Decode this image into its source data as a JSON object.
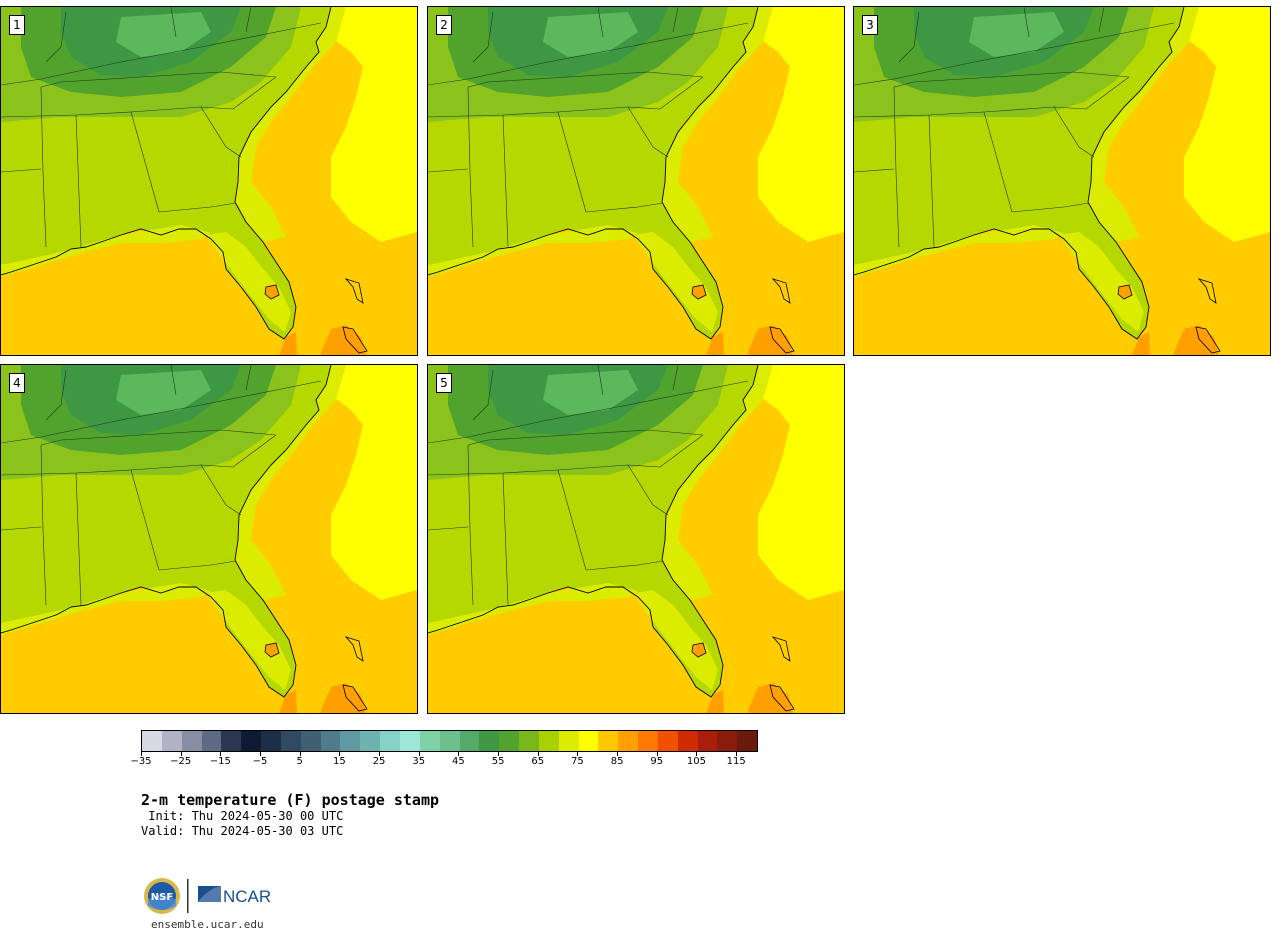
{
  "figure": {
    "title": "2-m temperature (F) postage stamp",
    "init": " Init: Thu 2024-05-30 00 UTC",
    "valid": "Valid: Thu 2024-05-30 03 UTC",
    "website": "ensemble.ucar.edu",
    "logos": {
      "nsf": "NSF",
      "ncar": "NCAR"
    }
  },
  "stamps": [
    {
      "label": "1"
    },
    {
      "label": "2"
    },
    {
      "label": "3"
    },
    {
      "label": "4"
    },
    {
      "label": "5"
    }
  ],
  "colorbar": {
    "tick_labels": [
      "-35",
      "-25",
      "-15",
      "-5",
      "5",
      "15",
      "25",
      "35",
      "45",
      "55",
      "65",
      "75",
      "85",
      "95",
      "105",
      "115"
    ],
    "colors": [
      "#d7dae3",
      "#afb3c4",
      "#878ea3",
      "#5f6a85",
      "#2c3853",
      "#0f1a33",
      "#1e2d48",
      "#2f4a62",
      "#3f5f74",
      "#4f7b8a",
      "#5f9aa3",
      "#6fb3b0",
      "#87d2c6",
      "#9ee7d8",
      "#7fd2a6",
      "#6cc08e",
      "#55aa6a",
      "#3e9742",
      "#52a22e",
      "#78b81a",
      "#a7d100",
      "#dbec00",
      "#ffff00",
      "#ffc800",
      "#ff9f00",
      "#ff7800",
      "#f05000",
      "#d02a00",
      "#a81d0c",
      "#8a1c0c",
      "#6b1a0c"
    ]
  },
  "map_colors": {
    "ocean_warm": "#ffcc00",
    "ocean_hot": "#ff9f00",
    "ocean_cool": "#ffff00",
    "land_low": "#b5d800",
    "land_mid": "#8cc21c",
    "land_cool": "#52a22e",
    "land_cold": "#3e9742",
    "land_mtn": "#5cb85c",
    "coast_yellow": "#dbec00"
  }
}
